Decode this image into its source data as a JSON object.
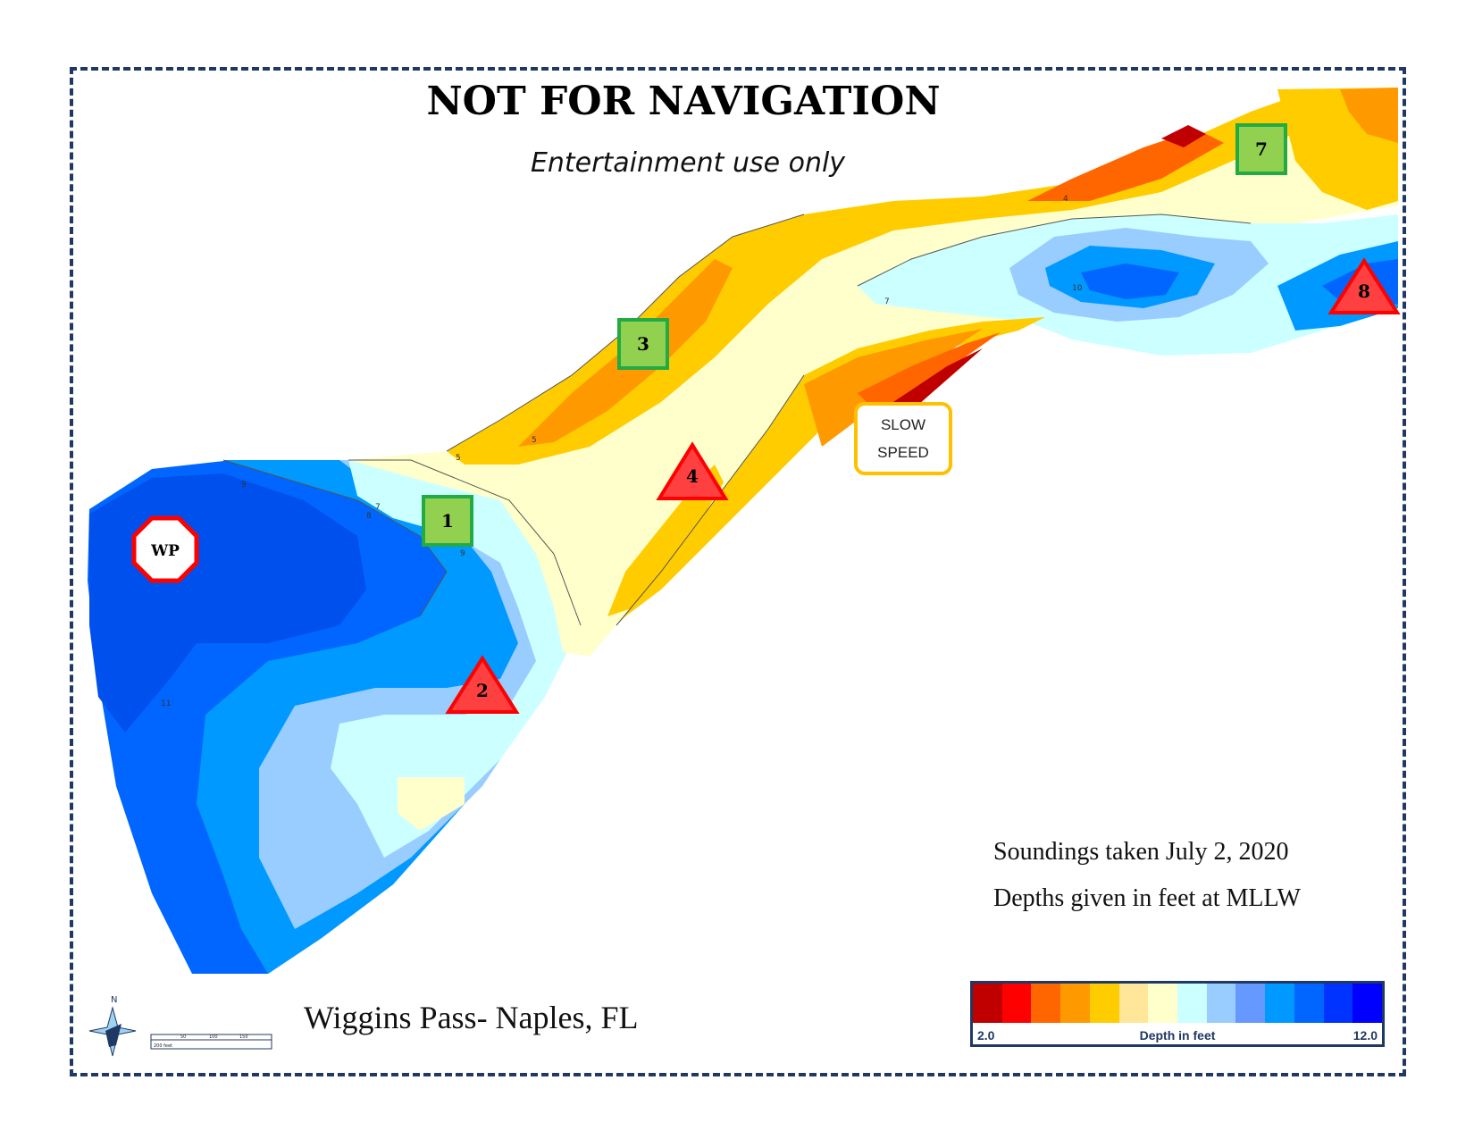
{
  "title": "NOT FOR NAVIGATION",
  "subtitle": "Entertainment use only",
  "notes": {
    "soundings_date": "Soundings taken July 2, 2020",
    "datum": "Depths given in feet at MLLW"
  },
  "place_name": "Wiggins Pass- Naples, FL",
  "slow_zone": {
    "line1": "SLOW",
    "line2": "SPEED"
  },
  "markers": {
    "green": [
      "1",
      "3",
      "7"
    ],
    "red": [
      "2",
      "4",
      "8"
    ],
    "wp": "WP"
  },
  "compass": {
    "north_label": "N"
  },
  "scale_bar": {
    "labels": [
      "200 feet",
      "50",
      "100",
      "150"
    ]
  },
  "legend": {
    "title": "Depth in feet",
    "min_label": "2.0",
    "max_label": "12.0",
    "colors": [
      "#c00000",
      "#ff0000",
      "#ff6600",
      "#ff9900",
      "#ffcc00",
      "#ffe699",
      "#ffffcc",
      "#ccffff",
      "#99ccff",
      "#6699ff",
      "#0099ff",
      "#0066ff",
      "#0033ff",
      "#0000ff"
    ]
  },
  "contour_labels": [
    "5",
    "6",
    "7",
    "8",
    "9",
    "10",
    "11",
    "4"
  ]
}
